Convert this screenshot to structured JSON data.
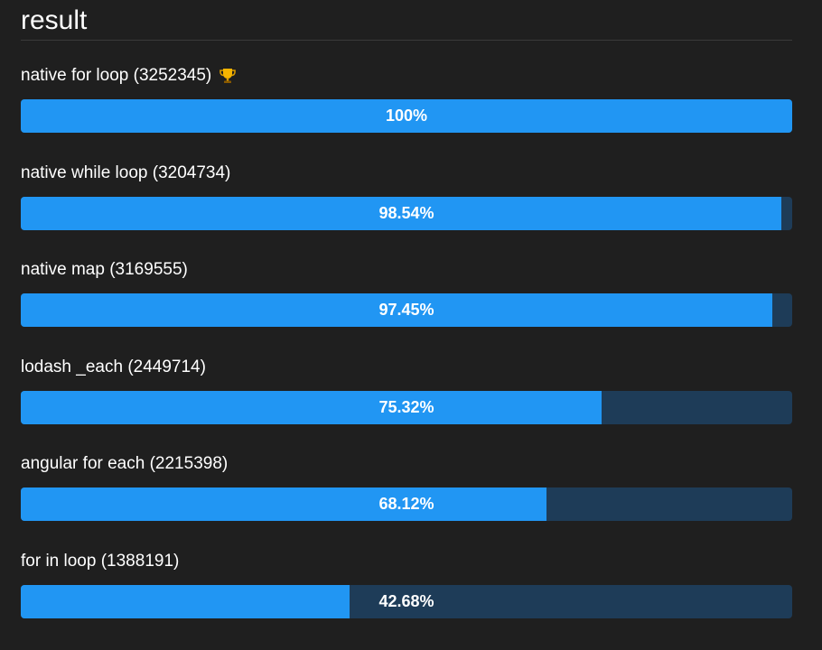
{
  "panel": {
    "title": "result"
  },
  "colors": {
    "background": "#1f1f1f",
    "bar_fill": "#2196f3",
    "bar_track": "#1e3c58",
    "divider": "#3a3a3a"
  },
  "results": [
    {
      "label": "native for loop (3252345)",
      "percent_label": "100%",
      "fraction": 1.0,
      "winner": true,
      "winner_icon": "trophy-icon"
    },
    {
      "label": "native while loop (3204734)",
      "percent_label": "98.54%",
      "fraction": 0.9854,
      "winner": false
    },
    {
      "label": "native map (3169555)",
      "percent_label": "97.45%",
      "fraction": 0.9745,
      "winner": false
    },
    {
      "label": "lodash _each (2449714)",
      "percent_label": "75.32%",
      "fraction": 0.7532,
      "winner": false
    },
    {
      "label": "angular for each (2215398)",
      "percent_label": "68.12%",
      "fraction": 0.6812,
      "winner": false
    },
    {
      "label": "for in loop (1388191)",
      "percent_label": "42.68%",
      "fraction": 0.4268,
      "winner": false
    }
  ]
}
